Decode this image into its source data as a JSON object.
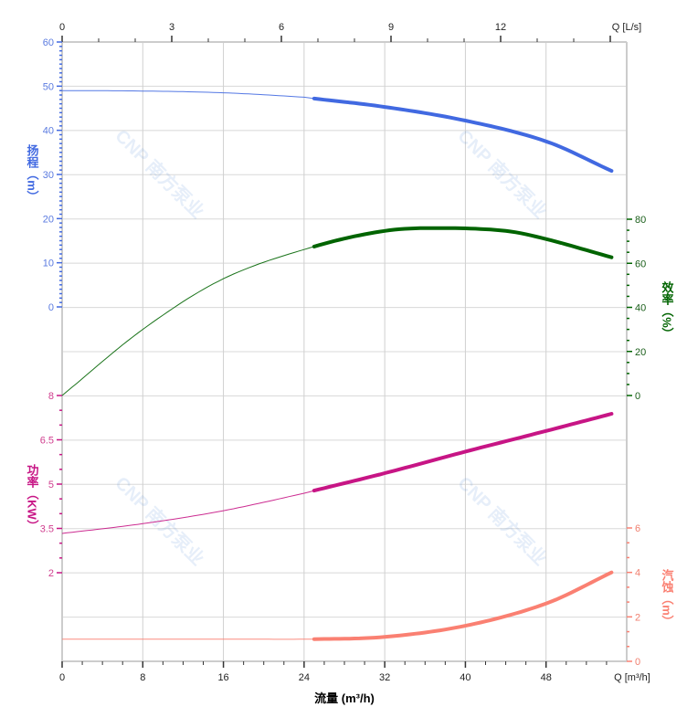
{
  "chart_data": {
    "type": "line",
    "x_axis": {
      "label": "流量 (m³/h)",
      "unit_label": "Q [m³/h]",
      "range": [
        0,
        56
      ],
      "ticks": [
        0,
        8,
        16,
        24,
        32,
        40,
        48
      ]
    },
    "x2_axis": {
      "unit_label": "Q [L/s]",
      "range": [
        0,
        15.56
      ],
      "ticks": [
        0,
        3,
        6,
        9,
        12
      ]
    },
    "grid": true,
    "watermark": "CNP 南方泵业",
    "operating_range": [
      25,
      54.5
    ],
    "series": [
      {
        "key": "head",
        "axis_label": "扬程（m）",
        "color": "#4169E1",
        "ticks": [
          0,
          10,
          20,
          30,
          40,
          50,
          60
        ],
        "range": [
          0,
          60
        ],
        "x": [
          0,
          8,
          16,
          24,
          25,
          32,
          40,
          48,
          54.5
        ],
        "y": [
          49,
          48.9,
          48.5,
          47.5,
          47.2,
          45.3,
          42.2,
          37.5,
          30.8
        ]
      },
      {
        "key": "efficiency",
        "axis_label": "效率（%）",
        "color": "#006400",
        "ticks": [
          0,
          20,
          40,
          60,
          80
        ],
        "range": [
          0,
          80
        ],
        "x": [
          0,
          8,
          16,
          25,
          32,
          37.5,
          44,
          48,
          54.5
        ],
        "y": [
          0,
          30,
          53,
          67.6,
          74.7,
          76,
          74.7,
          71,
          62.7
        ]
      },
      {
        "key": "power",
        "axis_label": "功率（KW）",
        "color": "#C71585",
        "ticks": [
          2,
          3.5,
          5,
          6.5,
          8
        ],
        "range": [
          2,
          8
        ],
        "x": [
          0,
          8,
          16,
          24,
          25,
          32,
          40,
          48,
          54.5
        ],
        "y": [
          3.33,
          3.66,
          4.1,
          4.69,
          4.78,
          5.37,
          6.1,
          6.8,
          7.38
        ]
      },
      {
        "key": "npsh",
        "axis_label": "汽蚀（m）",
        "color": "#FA8072",
        "ticks": [
          0,
          2,
          4,
          6
        ],
        "range": [
          0,
          6
        ],
        "x": [
          0,
          8,
          16,
          25,
          32,
          40,
          48,
          54.5
        ],
        "y": [
          1.0,
          1.0,
          1.0,
          1.0,
          1.1,
          1.6,
          2.6,
          4.0
        ]
      }
    ]
  }
}
